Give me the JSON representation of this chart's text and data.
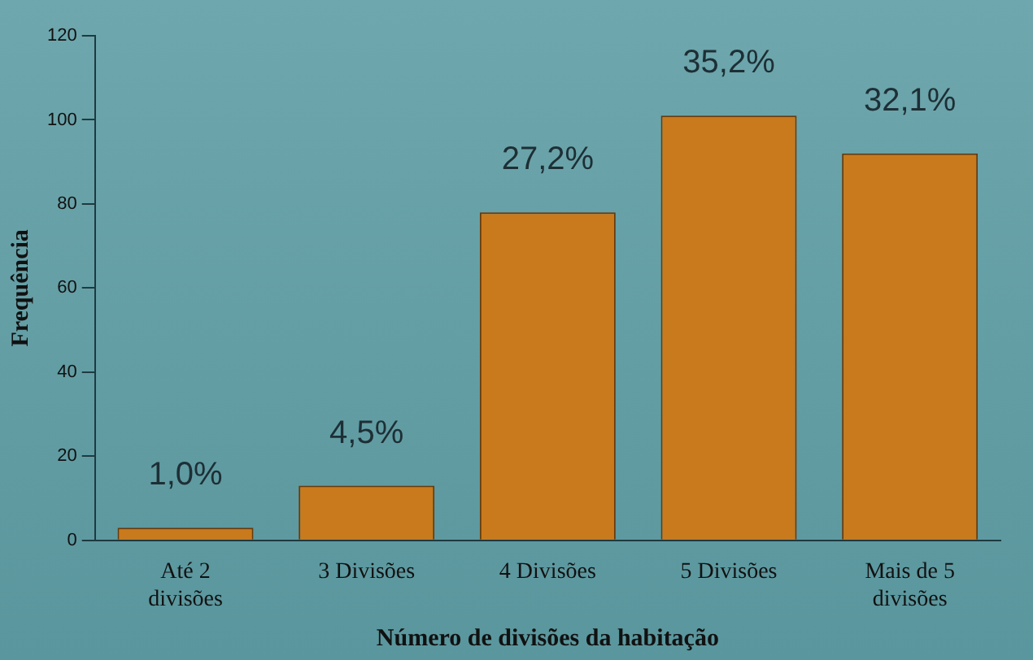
{
  "chart_data": {
    "type": "bar",
    "xlabel": "Número de divisões da habitação",
    "ylabel": "Frequência",
    "categories": [
      "Até 2\ndivisões",
      "3 Divisões",
      "4 Divisões",
      "5 Divisões",
      "Mais de 5\ndivisões"
    ],
    "values": [
      3,
      13,
      78,
      101,
      92
    ],
    "color": "#c97a1c",
    "annotations": [
      {
        "text": "1,0%",
        "x": "Até 2\ndivisões",
        "y": 3
      },
      {
        "text": "4,5%",
        "x": "3 Divisões",
        "y": 13
      },
      {
        "text": "27,2%",
        "x": "4 Divisões",
        "y": 78
      },
      {
        "text": "35,2%",
        "x": "5 Divisões",
        "y": 101
      },
      {
        "text": "32,1%",
        "x": "Mais de 5\ndivisões",
        "y": 92
      }
    ],
    "ylim": [
      0,
      120
    ],
    "yticks": [
      0,
      20,
      40,
      60,
      80,
      100,
      120
    ],
    "grid": false,
    "legend": false
  }
}
